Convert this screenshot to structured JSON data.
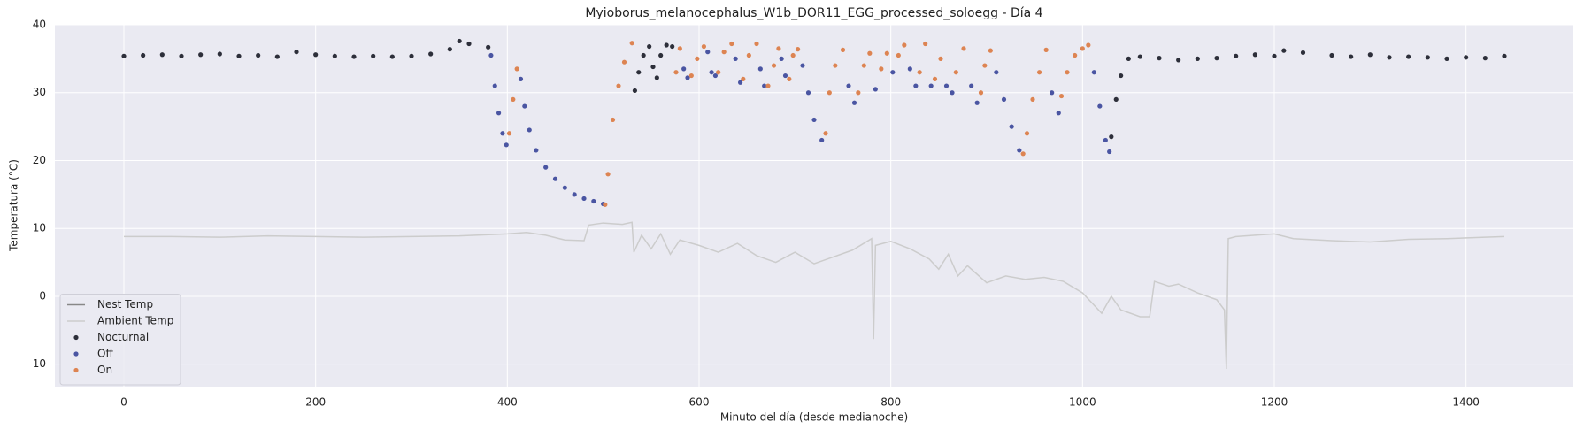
{
  "chart_data": {
    "type": "scatter",
    "title": "Myioborus_melanocephalus_W1b_DOR11_EGG_processed_soloegg - Día 4",
    "xlabel": "Minuto del día (desde medianoche)",
    "ylabel": "Temperatura (°C)",
    "xlim": [
      -72,
      1512
    ],
    "ylim": [
      -13.3,
      40
    ],
    "xticks": [
      0,
      200,
      400,
      600,
      800,
      1000,
      1200,
      1400
    ],
    "yticks": [
      -10,
      0,
      10,
      20,
      30,
      40
    ],
    "grid": true,
    "legend": "lower left",
    "series": [
      {
        "name": "Nest Temp",
        "color": "#888888",
        "kind": "line"
      },
      {
        "name": "Ambient Temp",
        "color": "#cccccc",
        "kind": "line",
        "x": [
          0,
          50,
          100,
          150,
          200,
          250,
          300,
          350,
          400,
          420,
          440,
          460,
          480,
          485,
          500,
          520,
          530,
          532,
          540,
          550,
          560,
          570,
          580,
          600,
          620,
          640,
          660,
          680,
          700,
          720,
          740,
          760,
          780,
          782,
          784,
          800,
          820,
          840,
          850,
          860,
          870,
          880,
          900,
          920,
          940,
          960,
          980,
          1000,
          1010,
          1020,
          1030,
          1040,
          1060,
          1070,
          1075,
          1090,
          1100,
          1120,
          1140,
          1148,
          1150,
          1152,
          1160,
          1180,
          1200,
          1220,
          1260,
          1300,
          1340,
          1380,
          1420,
          1440
        ],
        "values": [
          8.8,
          8.8,
          8.7,
          8.9,
          8.8,
          8.7,
          8.8,
          8.9,
          9.2,
          9.4,
          9.0,
          8.3,
          8.2,
          10.5,
          10.8,
          10.6,
          10.9,
          6.5,
          9,
          7,
          9.2,
          6.2,
          8.3,
          7.5,
          6.5,
          7.8,
          6.0,
          5.0,
          6.5,
          4.8,
          5.8,
          6.8,
          8.5,
          -6.3,
          7.5,
          8.1,
          7,
          5.5,
          4,
          6.2,
          3,
          4.5,
          2,
          3,
          2.5,
          2.8,
          2.2,
          0.5,
          -1,
          -2.5,
          0,
          -2,
          -3,
          -3,
          2.2,
          1.5,
          1.8,
          0.5,
          -0.5,
          -2,
          -10.7,
          8.5,
          8.8,
          9.0,
          9.2,
          8.5,
          8.2,
          8.0,
          8.4,
          8.5,
          8.7,
          8.8
        ]
      },
      {
        "name": "Nocturnal",
        "color": "#2d2f3a",
        "kind": "scatter",
        "x": [
          0,
          20,
          40,
          60,
          80,
          100,
          120,
          140,
          160,
          180,
          200,
          220,
          240,
          260,
          280,
          300,
          320,
          340,
          350,
          360,
          380,
          533,
          537,
          542,
          548,
          552,
          556,
          560,
          566,
          572,
          1030,
          1035,
          1040,
          1048,
          1060,
          1080,
          1100,
          1120,
          1140,
          1160,
          1180,
          1200,
          1210,
          1230,
          1260,
          1280,
          1300,
          1320,
          1340,
          1360,
          1380,
          1400,
          1420,
          1440
        ],
        "values": [
          35.4,
          35.5,
          35.6,
          35.4,
          35.6,
          35.7,
          35.4,
          35.5,
          35.3,
          36.0,
          35.6,
          35.4,
          35.3,
          35.4,
          35.3,
          35.4,
          35.7,
          36.4,
          37.6,
          37.2,
          36.7,
          30.3,
          33,
          35.5,
          36.8,
          33.8,
          32.2,
          35.5,
          37,
          36.8,
          23.5,
          29,
          32.5,
          35,
          35.3,
          35.1,
          34.8,
          35.0,
          35.1,
          35.4,
          35.6,
          35.4,
          36.2,
          35.9,
          35.5,
          35.3,
          35.6,
          35.2,
          35.3,
          35.2,
          35.0,
          35.2,
          35.1,
          35.4
        ]
      },
      {
        "name": "Off",
        "color": "#4a55a2",
        "kind": "scatter",
        "x": [
          383,
          387,
          391,
          395,
          399,
          414,
          418,
          423,
          430,
          440,
          450,
          460,
          470,
          480,
          490,
          500,
          584,
          588,
          609,
          613,
          617,
          638,
          643,
          664,
          668,
          686,
          690,
          708,
          714,
          720,
          728,
          756,
          762,
          784,
          802,
          820,
          826,
          842,
          858,
          864,
          884,
          890,
          910,
          918,
          926,
          934,
          968,
          975,
          1012,
          1018,
          1024,
          1028
        ],
        "values": [
          35.5,
          31,
          27,
          24,
          22.3,
          32,
          28,
          24.5,
          21.5,
          19,
          17.3,
          16,
          15,
          14.4,
          14,
          13.6,
          33.5,
          32.2,
          36,
          33,
          32.5,
          35,
          31.5,
          33.5,
          31,
          35,
          32.5,
          34,
          30,
          26,
          23,
          31,
          28.5,
          30.5,
          33,
          33.5,
          31,
          31,
          31,
          30,
          31,
          28.5,
          33,
          29,
          25,
          21.5,
          30,
          27,
          33,
          28,
          23,
          21.3
        ]
      },
      {
        "name": "On",
        "color": "#dd8452",
        "kind": "scatter",
        "x": [
          402,
          406,
          410,
          502,
          505,
          510,
          516,
          522,
          530,
          576,
          580,
          592,
          598,
          605,
          620,
          626,
          634,
          646,
          652,
          660,
          672,
          678,
          683,
          694,
          698,
          703,
          732,
          736,
          742,
          750,
          766,
          772,
          778,
          790,
          796,
          808,
          814,
          830,
          836,
          846,
          852,
          868,
          876,
          894,
          898,
          904,
          938,
          942,
          948,
          955,
          962,
          978,
          984,
          992,
          1000,
          1006
        ],
        "values": [
          24,
          29,
          33.5,
          13.5,
          18,
          26,
          31,
          34.5,
          37.3,
          33,
          36.5,
          32.5,
          35,
          36.8,
          33,
          36,
          37.2,
          32,
          35.5,
          37.2,
          31,
          34,
          36.5,
          32,
          35.5,
          36.4,
          24,
          30,
          34,
          36.3,
          30,
          34,
          35.8,
          33.5,
          35.8,
          35.5,
          37,
          33,
          37.2,
          32,
          35,
          33,
          36.5,
          30,
          34,
          36.2,
          21,
          24,
          29,
          33,
          36.3,
          29.5,
          33,
          35.5,
          36.5,
          37
        ]
      }
    ]
  }
}
